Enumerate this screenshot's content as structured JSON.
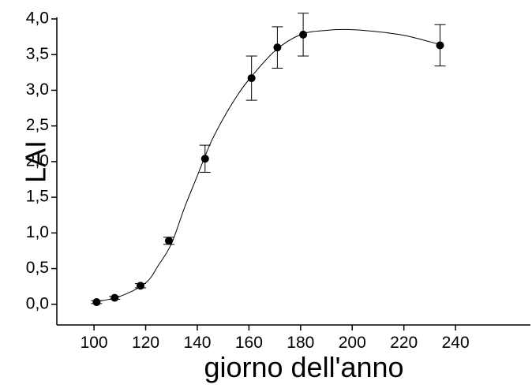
{
  "chart_data": {
    "type": "scatter",
    "x_label": "giorno dell'anno",
    "y_label": "LAI",
    "color": "#000000",
    "xlim": [
      85.6,
      269
    ],
    "ylim": [
      -0.29,
      4.0
    ],
    "xticks": [
      100,
      120,
      140,
      160,
      180,
      200,
      220,
      240
    ],
    "yticks": [
      {
        "value": 0,
        "label": "0,0"
      },
      {
        "value": 0.5,
        "label": "0,5"
      },
      {
        "value": 1,
        "label": "1,0"
      },
      {
        "value": 1.5,
        "label": "1,5"
      },
      {
        "value": 2,
        "label": "2,0"
      },
      {
        "value": 2.5,
        "label": "2,5"
      },
      {
        "value": 3,
        "label": "3,0"
      },
      {
        "value": 3.5,
        "label": "3,5"
      },
      {
        "value": 4,
        "label": "4,0"
      }
    ],
    "points": {
      "x": [
        101,
        108,
        118,
        129,
        143,
        161,
        171,
        181,
        234
      ],
      "values": [
        0.03,
        0.09,
        0.26,
        0.89,
        2.04,
        3.17,
        3.6,
        3.78,
        3.63
      ],
      "errors": [
        0.02,
        0.02,
        0.03,
        0.05,
        0.19,
        0.31,
        0.29,
        0.3,
        0.29
      ]
    },
    "fit": {
      "x": [
        100,
        110,
        120,
        125,
        130,
        135,
        140,
        145,
        150,
        155,
        160,
        170,
        180,
        190,
        200,
        210,
        220,
        230,
        234
      ],
      "values": [
        0.03,
        0.11,
        0.3,
        0.55,
        0.85,
        1.35,
        1.8,
        2.25,
        2.6,
        2.9,
        3.15,
        3.55,
        3.78,
        3.84,
        3.85,
        3.82,
        3.77,
        3.68,
        3.64
      ]
    }
  }
}
